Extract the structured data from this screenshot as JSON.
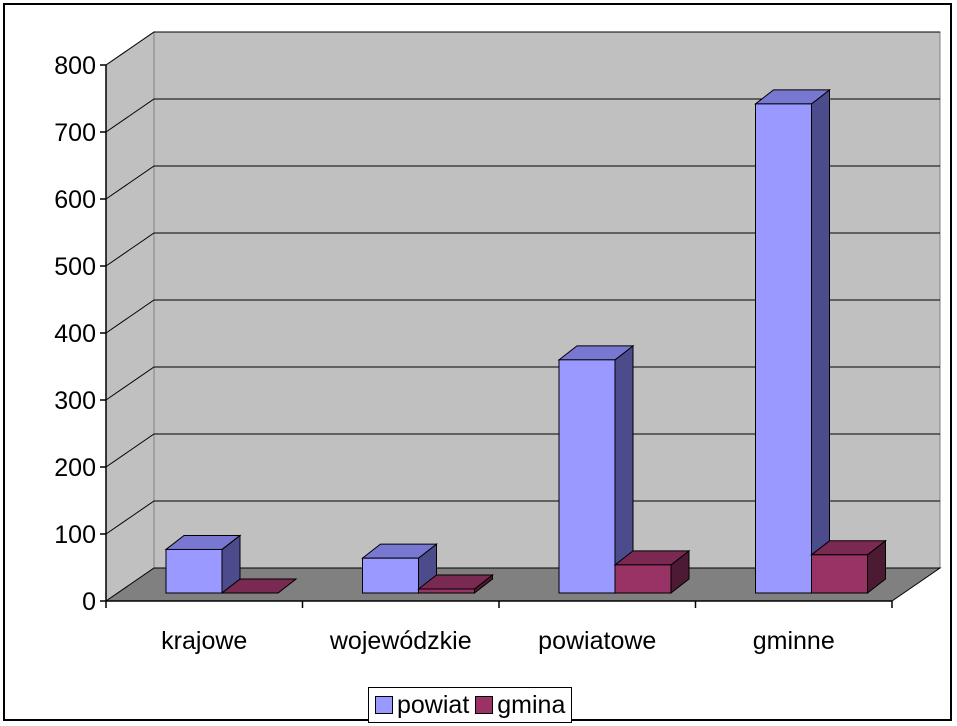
{
  "chart_data": {
    "type": "bar",
    "categories": [
      "krajowe",
      "wojewódzkie",
      "powiatowe",
      "gminne"
    ],
    "series": [
      {
        "name": "powiat",
        "values": [
          65,
          52,
          348,
          730
        ],
        "color": "#9999ff",
        "side_color": "#4c4c8c",
        "top_color": "#7878d2"
      },
      {
        "name": "gmina",
        "values": [
          0,
          6,
          42,
          57
        ],
        "color": "#993366",
        "side_color": "#4d1a33",
        "top_color": "#7a2952"
      }
    ],
    "title": "",
    "xlabel": "",
    "ylabel": "",
    "ylim": [
      0,
      800
    ],
    "yticks": [
      0,
      100,
      200,
      300,
      400,
      500,
      600,
      700,
      800
    ],
    "grid": true,
    "legend_position": "bottom",
    "projection": "3d-clustered-column"
  }
}
